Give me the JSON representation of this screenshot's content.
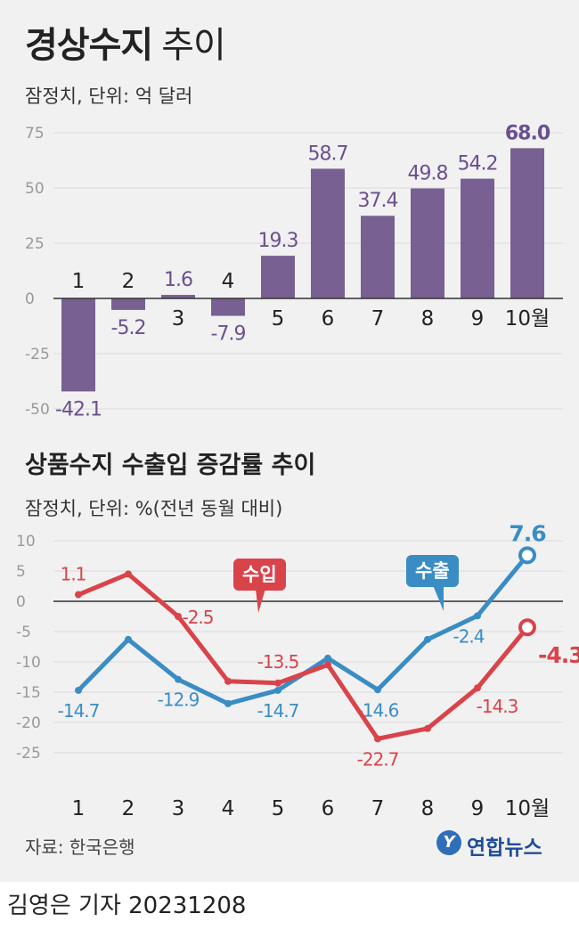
{
  "title": {
    "bold": "경상수지",
    "light": "추이"
  },
  "subtitle1": "잠정치, 단위: 억 달러",
  "title2": "상품수지 수출입 증감률 추이",
  "subtitle2": "잠정치, 단위: %(전년 동월 대비)",
  "source": "자료: 한국은행",
  "logo_text": "연합뉴스",
  "byline": "김영은 기자  20231208",
  "colors": {
    "bar": "#786092",
    "export": "#3a8dc4",
    "import": "#d9434a",
    "bar_label": "#6b5090"
  },
  "chart_data": [
    {
      "type": "bar",
      "title": "경상수지 추이",
      "categories": [
        "1",
        "2",
        "3",
        "4",
        "5",
        "6",
        "7",
        "8",
        "9",
        "10월"
      ],
      "values": [
        -42.1,
        -5.2,
        1.6,
        -7.9,
        19.3,
        58.7,
        37.4,
        49.8,
        54.2,
        68.0
      ],
      "value_labels": [
        "-42.1",
        "-5.2",
        "1.6",
        "-7.9",
        "19.3",
        "58.7",
        "37.4",
        "49.8",
        "54.2",
        "68.0"
      ],
      "yticks": [
        "75",
        "50",
        "25",
        "0",
        "-25",
        "-50"
      ],
      "ylim": [
        -50,
        75
      ],
      "grid": true
    },
    {
      "type": "line",
      "title": "상품수지 수출입 증감률 추이",
      "categories": [
        "1",
        "2",
        "3",
        "4",
        "5",
        "6",
        "7",
        "8",
        "9",
        "10월"
      ],
      "yticks": [
        "10",
        "5",
        "0",
        "-5",
        "-10",
        "-15",
        "-20",
        "-25"
      ],
      "ylim": [
        -25,
        10
      ],
      "grid": true,
      "series": [
        {
          "name": "수출",
          "values": [
            -14.7,
            -6.3,
            -12.9,
            -16.9,
            -14.7,
            -9.4,
            -14.6,
            -6.3,
            -2.4,
            7.6
          ],
          "labels": [
            "-14.7",
            null,
            "-12.9",
            null,
            "-14.7",
            null,
            "-14.6",
            null,
            "-2.4",
            "7.6"
          ]
        },
        {
          "name": "수입",
          "values": [
            1.1,
            4.5,
            -2.5,
            -13.2,
            -13.5,
            -10.5,
            -22.7,
            -21.0,
            -14.3,
            -4.3
          ],
          "labels": [
            "1.1",
            null,
            "-2.5",
            null,
            "-13.5",
            null,
            "-22.7",
            null,
            "-14.3",
            "-4.3"
          ]
        }
      ]
    }
  ]
}
